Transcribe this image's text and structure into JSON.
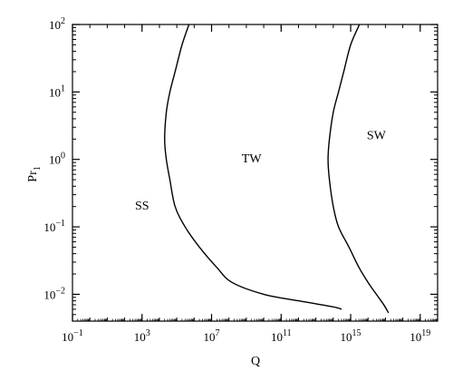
{
  "chart_data": {
    "type": "line",
    "title": "",
    "xlabel": "Q",
    "ylabel_main": "Pr",
    "ylabel_sub": "1",
    "xscale": "log",
    "yscale": "log",
    "xlim": [
      0.1,
      1e+20
    ],
    "ylim": [
      0.004,
      100
    ],
    "grid": false,
    "legend": "none",
    "x_ticks": [
      {
        "value": 0.1,
        "base": "10",
        "exp": "−1"
      },
      {
        "value": 1000.0,
        "base": "10",
        "exp": "3"
      },
      {
        "value": 10000000.0,
        "base": "10",
        "exp": "7"
      },
      {
        "value": 100000000000.0,
        "base": "10",
        "exp": "11"
      },
      {
        "value": 1000000000000000.0,
        "base": "10",
        "exp": "15"
      },
      {
        "value": 1e+19,
        "base": "10",
        "exp": "19"
      }
    ],
    "y_ticks": [
      {
        "value": 0.01,
        "base": "10",
        "exp": "−2"
      },
      {
        "value": 0.1,
        "base": "10",
        "exp": "−1"
      },
      {
        "value": 1,
        "base": "10",
        "exp": "0"
      },
      {
        "value": 10,
        "base": "10",
        "exp": "1"
      },
      {
        "value": 100,
        "base": "10",
        "exp": "2"
      }
    ],
    "series": [
      {
        "color": "#000000",
        "points": [
          [
            3200000000000000.0,
            100
          ],
          [
            1000000000000000.0,
            50
          ],
          [
            400000000000000.0,
            20
          ],
          [
            200000000000000.0,
            10
          ],
          [
            100000000000000.0,
            5
          ],
          [
            60000000000000.0,
            2
          ],
          [
            50000000000000.0,
            1
          ],
          [
            60000000000000.0,
            0.5
          ],
          [
            100000000000000.0,
            0.2
          ],
          [
            200000000000000.0,
            0.1
          ],
          [
            800000000000000.0,
            0.05
          ],
          [
            3000000000000000.0,
            0.025
          ],
          [
            1e+16,
            0.015
          ],
          [
            3e+16,
            0.01
          ],
          [
            8e+16,
            0.007
          ],
          [
            1.5e+17,
            0.0053
          ]
        ]
      },
      {
        "color": "#000000",
        "points": [
          [
            500000.0,
            100
          ],
          [
            200000.0,
            50
          ],
          [
            80000.0,
            20
          ],
          [
            40000.0,
            10
          ],
          [
            25000.0,
            5
          ],
          [
            20000.0,
            2
          ],
          [
            25000.0,
            1
          ],
          [
            40000.0,
            0.5
          ],
          [
            80000.0,
            0.2
          ],
          [
            300000.0,
            0.1
          ],
          [
            2000000.0,
            0.05
          ],
          [
            20000000.0,
            0.025
          ],
          [
            150000000.0,
            0.015
          ],
          [
            10000000000.0,
            0.01
          ],
          [
            1000000000000.0,
            0.008
          ],
          [
            100000000000000.0,
            0.0065
          ],
          [
            300000000000000.0,
            0.006
          ]
        ]
      }
    ],
    "annotations": [
      {
        "text": "SS",
        "x": 1000.0,
        "y": 0.18
      },
      {
        "text": "TW",
        "x": 2000000000.0,
        "y": 0.9
      },
      {
        "text": "SW",
        "x": 3e+16,
        "y": 2.0
      }
    ]
  }
}
